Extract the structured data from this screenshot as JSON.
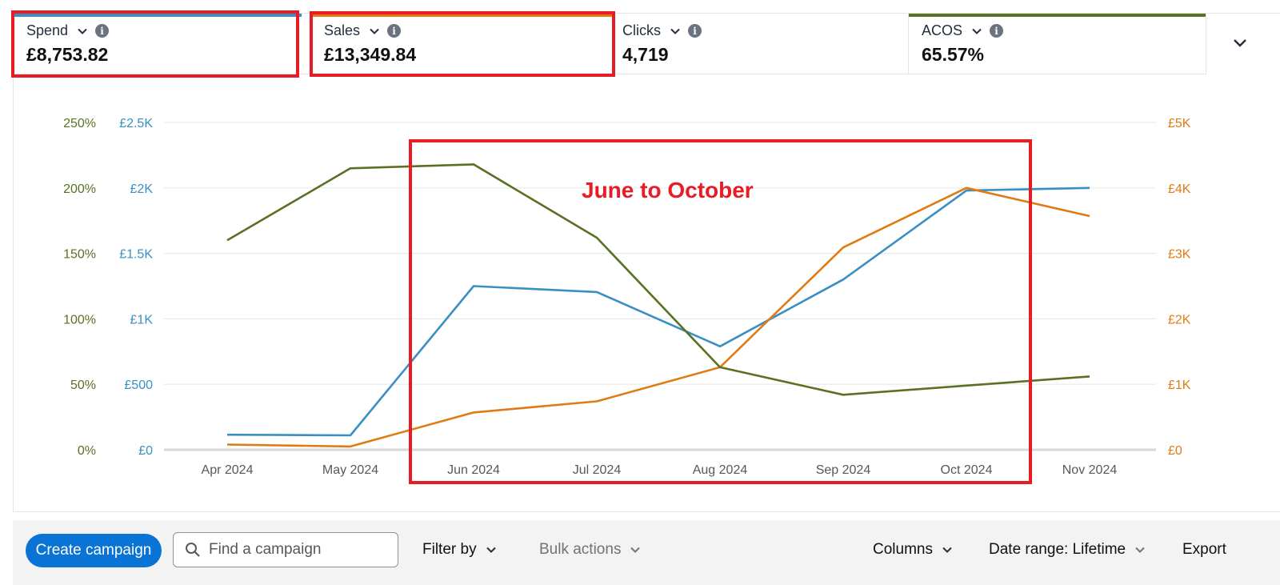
{
  "metrics": [
    {
      "label": "Spend",
      "value": "£8,753.82",
      "color": "#3a8fc2"
    },
    {
      "label": "Sales",
      "value": "£13,349.84",
      "color": "#e07b14"
    },
    {
      "label": "Clicks",
      "value": "4,719",
      "color": ""
    },
    {
      "label": "ACOS",
      "value": "65.57%",
      "color": "#5a7023"
    }
  ],
  "annotation": "June to October",
  "chart_data": {
    "type": "line",
    "categories": [
      "Apr 2024",
      "May 2024",
      "Jun 2024",
      "Jul 2024",
      "Aug 2024",
      "Sep 2024",
      "Oct 2024",
      "Nov 2024"
    ],
    "series": [
      {
        "name": "Spend",
        "axis": "left-currency",
        "color": "#3a8fc2",
        "values": [
          115,
          110,
          1250,
          1205,
          790,
          1300,
          1980,
          2000
        ]
      },
      {
        "name": "Sales",
        "axis": "right-currency",
        "color": "#e07b14",
        "values": [
          80,
          50,
          570,
          740,
          1260,
          3090,
          4000,
          3570
        ]
      },
      {
        "name": "ACOS",
        "axis": "left-percent",
        "color": "#5a7023",
        "values": [
          160,
          215,
          218,
          162,
          63,
          42,
          49,
          56
        ]
      }
    ],
    "axes": {
      "left_percent": {
        "min": 0,
        "max": 250,
        "ticks": [
          "0%",
          "50%",
          "100%",
          "150%",
          "200%",
          "250%"
        ],
        "color": "#5a7023"
      },
      "left_currency": {
        "min": 0,
        "max": 2500,
        "ticks": [
          "£0",
          "£500",
          "£1K",
          "£1.5K",
          "£2K",
          "£2.5K"
        ],
        "color": "#3a8fc2"
      },
      "right_currency": {
        "min": 0,
        "max": 5000,
        "ticks": [
          "£0",
          "£1K",
          "£2K",
          "£3K",
          "£4K",
          "£5K"
        ],
        "color": "#e07b14"
      }
    },
    "grid": true
  },
  "toolbar": {
    "create_label": "Create campaign",
    "search_placeholder": "Find a campaign",
    "filter_label": "Filter by",
    "bulk_label": "Bulk actions",
    "columns_label": "Columns",
    "date_range_label": "Date range: Lifetime",
    "export_label": "Export"
  }
}
